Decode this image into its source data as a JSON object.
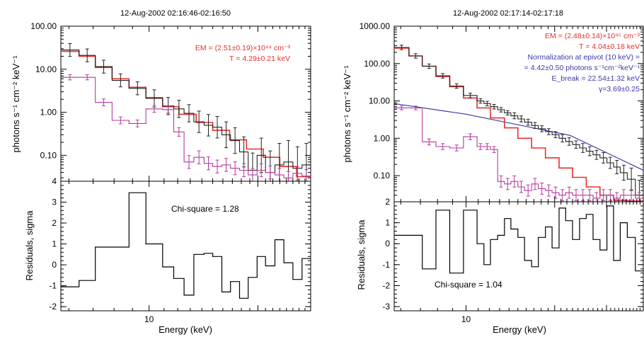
{
  "chart_data": [
    {
      "type": "line",
      "title": "12-Aug-2002 02:16:46-02:16:50",
      "xlabel": "Energy (keV)",
      "xscale": "log",
      "xlim": [
        5.7,
        28
      ],
      "x_tick_labels": [
        {
          "value": 10,
          "label": "10"
        }
      ],
      "top": {
        "ylabel": "photons s⁻¹ cm⁻² keV⁻¹",
        "yscale": "log",
        "ylim": [
          0.025,
          100
        ],
        "y_tick_labels": [
          {
            "value": 100,
            "label": "100.00"
          },
          {
            "value": 10,
            "label": "10.00"
          },
          {
            "value": 1,
            "label": "1.00"
          },
          {
            "value": 0.1,
            "label": "0.10"
          }
        ],
        "annotations": [
          {
            "text": "EM = (2.51±0.19)×10⁴⁴ cm⁻³",
            "color": "#e8302c"
          },
          {
            "text": "T = 4.29±0.21 keV",
            "color": "#e8302c"
          }
        ],
        "series": [
          {
            "style": "hist",
            "color": "#e8302c",
            "edges": [
              5.7,
              6.4,
              7.1,
              7.9,
              8.8,
              9.8,
              10.9,
              12.1,
              13.5,
              15.0,
              16.7,
              18.6,
              20.7,
              23.0,
              25.6,
              28.0
            ],
            "values": [
              26,
              20,
              11,
              6.0,
              3.8,
              2.2,
              1.35,
              0.9,
              0.58,
              0.38,
              0.23,
              0.14,
              0.09,
              0.055,
              0.032
            ]
          },
          {
            "style": "hist_err",
            "color": "#222222",
            "edges": [
              5.7,
              6.4,
              7.1,
              7.9,
              8.8,
              9.8,
              10.9,
              11.7,
              12.5,
              13.3,
              14.2,
              15.0,
              15.9,
              16.8,
              17.8,
              18.8,
              19.9,
              21.0,
              22.3,
              23.6,
              25.0,
              26.5,
              28.0
            ],
            "values": [
              28,
              21,
              11.5,
              5.5,
              3.6,
              2.1,
              1.4,
              1.2,
              0.95,
              0.6,
              0.5,
              0.45,
              0.3,
              0.22,
              0.12,
              0.045,
              0.1,
              0.04,
              0.06,
              0.07,
              0.05,
              0.06
            ],
            "errors": [
              0.15,
              0.15,
              0.15,
              0.15,
              0.15,
              0.2,
              0.2,
              0.2,
              0.2,
              0.25,
              0.25,
              0.25,
              0.3,
              0.3,
              0.35,
              0.4,
              0.4,
              0.5,
              0.5,
              0.5,
              0.5,
              0.5
            ]
          },
          {
            "style": "hist_err",
            "color": "#b33a9e",
            "edges": [
              5.7,
              6.4,
              7.1,
              7.9,
              8.8,
              9.8,
              10.9,
              11.7,
              12.5,
              13.3,
              14.2,
              15.0,
              15.9,
              16.8,
              17.8,
              18.8,
              19.9,
              21.0,
              22.3,
              23.6,
              25.0,
              26.5,
              28.0
            ],
            "values": [
              6.5,
              6.5,
              1.7,
              0.65,
              0.55,
              1.2,
              1.15,
              0.35,
              0.07,
              0.09,
              0.065,
              0.055,
              0.06,
              0.05,
              0.045,
              0.035,
              0.045,
              0.04,
              0.035,
              0.03,
              0.038,
              0.033
            ],
            "errors": [
              0.06,
              0.06,
              0.08,
              0.08,
              0.08,
              0.08,
              0.08,
              0.1,
              0.15,
              0.15,
              0.15,
              0.15,
              0.15,
              0.15,
              0.15,
              0.15,
              0.15,
              0.15,
              0.15,
              0.15,
              0.15,
              0.15
            ]
          }
        ]
      },
      "bottom": {
        "ylabel": "Residuals, sigma",
        "ylim": [
          -2.2,
          4
        ],
        "y_tick_labels": [
          {
            "value": 4,
            "label": "4"
          },
          {
            "value": 3,
            "label": "3"
          },
          {
            "value": 2,
            "label": "2"
          },
          {
            "value": 1,
            "label": "1"
          },
          {
            "value": 0,
            "label": "0"
          },
          {
            "value": -1,
            "label": "-1"
          },
          {
            "value": -2,
            "label": "-2"
          }
        ],
        "annotations": [
          {
            "text": "Chi-square = 1.28",
            "color": "#000000"
          }
        ],
        "series": [
          {
            "style": "hist",
            "color": "#000000",
            "edges": [
              5.7,
              6.4,
              7.1,
              7.9,
              8.8,
              9.8,
              10.9,
              11.7,
              12.5,
              13.3,
              14.2,
              15.0,
              15.9,
              16.8,
              17.8,
              18.8,
              19.9,
              21.0,
              22.3,
              23.6,
              25.0,
              26.5,
              28.0
            ],
            "values": [
              -1.05,
              -0.75,
              0.85,
              0.85,
              3.45,
              1.0,
              -0.1,
              -0.65,
              -1.45,
              0.5,
              0.55,
              0.4,
              -1.3,
              -0.8,
              -1.6,
              -0.6,
              0.4,
              -0.05,
              1.2,
              0.1,
              -0.7,
              0.3
            ]
          }
        ]
      }
    },
    {
      "type": "line",
      "title": "12-Aug-2002 02:17:14-02:17:18",
      "xlabel": "Energy (keV)",
      "xscale": "log",
      "xlim": [
        5.7,
        40
      ],
      "x_tick_labels": [
        {
          "value": 10,
          "label": "10"
        }
      ],
      "top": {
        "ylabel": "photons s⁻¹ cm⁻² keV⁻¹",
        "yscale": "log",
        "ylim": [
          0.02,
          1000
        ],
        "y_tick_labels": [
          {
            "value": 1000,
            "label": "1000.00"
          },
          {
            "value": 100,
            "label": "100.00"
          },
          {
            "value": 10,
            "label": "10.00"
          },
          {
            "value": 1,
            "label": "1.00"
          },
          {
            "value": 0.1,
            "label": "0.10"
          }
        ],
        "annotations": [
          {
            "text": "EM = (2.48±0.14)×10⁴⁵ cm⁻³",
            "color": "#e8302c"
          },
          {
            "text": "T = 4.04±0.18 keV",
            "color": "#e8302c"
          },
          {
            "text": "Normalization at epivot (10 keV) =",
            "color": "#3a3aa8"
          },
          {
            "text": "= 4.42±0.50 photons s⁻¹cm⁻²keV⁻¹",
            "color": "#3a3aa8"
          },
          {
            "text": "E_break = 22.54±1.32 keV",
            "color": "#3a3aa8"
          },
          {
            "text": "γ=3.69±0.25",
            "color": "#3a3aa8"
          }
        ],
        "series": [
          {
            "style": "line",
            "color": "#3a3aa8",
            "x": [
              5.7,
              10,
              22.54,
              40
            ],
            "y": [
              8.5,
              4.42,
              1.2,
              0.14
            ]
          },
          {
            "style": "hist",
            "color": "#e8302c",
            "edges": [
              5.7,
              6.4,
              7.1,
              7.9,
              8.8,
              9.8,
              10.9,
              12.1,
              13.5,
              15.0,
              16.7,
              18.6,
              20.7,
              23.0,
              25.6,
              28.5,
              31.7,
              35.3,
              40.0
            ],
            "values": [
              260,
              160,
              85,
              45,
              24,
              12,
              6.5,
              3.5,
              1.9,
              1.0,
              0.55,
              0.3,
              0.16,
              0.09,
              0.05,
              0.03,
              0.022,
              0.021
            ]
          },
          {
            "style": "hist_err",
            "color": "#222222",
            "edges": [
              5.7,
              6.4,
              7.1,
              7.9,
              8.8,
              9.8,
              10.9,
              11.5,
              12.1,
              12.8,
              13.5,
              14.2,
              15.0,
              15.8,
              16.7,
              17.6,
              18.6,
              19.6,
              20.7,
              21.8,
              23.0,
              24.3,
              25.6,
              27.0,
              28.5,
              30.1,
              31.7,
              33.4,
              35.3,
              37.6,
              40.0
            ],
            "values": [
              270,
              160,
              85,
              47,
              25,
              14,
              10,
              8.5,
              7.0,
              5.8,
              4.8,
              4.0,
              3.3,
              2.7,
              2.2,
              1.8,
              1.5,
              1.25,
              1.0,
              0.82,
              0.68,
              0.55,
              0.45,
              0.36,
              0.3,
              0.22,
              0.17,
              0.12,
              0.08,
              0.03
            ],
            "errors": [
              0.06,
              0.06,
              0.06,
              0.06,
              0.06,
              0.06,
              0.06,
              0.06,
              0.06,
              0.06,
              0.06,
              0.08,
              0.08,
              0.08,
              0.08,
              0.08,
              0.08,
              0.08,
              0.1,
              0.1,
              0.1,
              0.12,
              0.12,
              0.12,
              0.14,
              0.15,
              0.18,
              0.2,
              0.3,
              0.4
            ]
          },
          {
            "style": "hist_err",
            "color": "#b33a9e",
            "edges": [
              5.7,
              6.4,
              7.1,
              7.9,
              8.8,
              9.8,
              10.9,
              11.5,
              12.1,
              12.8,
              13.5,
              14.2,
              15.0,
              15.8,
              16.7,
              17.6,
              18.6,
              19.6,
              20.7,
              21.8,
              23.0,
              24.3,
              25.6,
              27.0,
              28.5,
              30.1,
              31.7,
              33.4,
              35.3,
              37.6,
              40.0
            ],
            "values": [
              6.5,
              6.5,
              0.8,
              0.6,
              0.55,
              1.1,
              0.6,
              0.6,
              0.5,
              0.07,
              0.06,
              0.07,
              0.05,
              0.04,
              0.06,
              0.045,
              0.04,
              0.035,
              0.03,
              0.035,
              0.03,
              0.03,
              0.03,
              0.025,
              0.03,
              0.03,
              0.025,
              0.03,
              0.03,
              0.025
            ],
            "errors": [
              0.05,
              0.05,
              0.08,
              0.08,
              0.08,
              0.08,
              0.08,
              0.08,
              0.08,
              0.15,
              0.15,
              0.15,
              0.15,
              0.15,
              0.15,
              0.15,
              0.15,
              0.15,
              0.15,
              0.15,
              0.15,
              0.15,
              0.15,
              0.15,
              0.15,
              0.15,
              0.15,
              0.15,
              0.15,
              0.15
            ]
          }
        ]
      },
      "bottom": {
        "ylabel": "Residuals, sigma",
        "ylim": [
          -3.2,
          2
        ],
        "y_tick_labels": [
          {
            "value": 2,
            "label": "2"
          },
          {
            "value": 1,
            "label": "1"
          },
          {
            "value": 0,
            "label": "0"
          },
          {
            "value": -1,
            "label": "-1"
          },
          {
            "value": -2,
            "label": "-2"
          },
          {
            "value": -3,
            "label": "-3"
          }
        ],
        "annotations": [
          {
            "text": "Chi-square = 1.04",
            "color": "#000000"
          }
        ],
        "series": [
          {
            "style": "hist",
            "color": "#000000",
            "edges": [
              5.7,
              6.4,
              7.1,
              7.9,
              8.8,
              9.8,
              10.9,
              11.5,
              12.1,
              12.8,
              13.5,
              14.2,
              15.0,
              15.8,
              16.7,
              17.6,
              18.6,
              19.6,
              20.7,
              21.8,
              23.0,
              24.3,
              25.6,
              27.0,
              28.5,
              30.1,
              31.7,
              33.4,
              35.3,
              37.6,
              40.0
            ],
            "values": [
              0.4,
              0.4,
              -1.2,
              1.6,
              -1.4,
              1.6,
              0.0,
              -1.0,
              0.2,
              0.4,
              1.2,
              0.7,
              0.3,
              -0.8,
              -1.1,
              0.3,
              0.8,
              -0.2,
              1.7,
              1.1,
              0.2,
              1.2,
              1.4,
              0.2,
              -0.3,
              1.8,
              -0.8,
              1.0,
              0.3,
              -1.3
            ]
          }
        ]
      }
    }
  ]
}
